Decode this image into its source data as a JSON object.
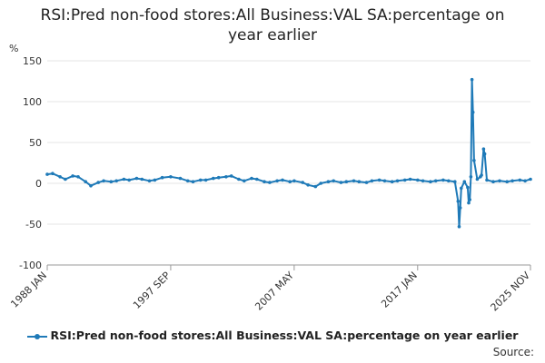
{
  "chart_data": {
    "type": "line",
    "title": "RSI:Pred non-food stores:All Business:VAL SA:percentage on year earlier",
    "title_lines": [
      "RSI:Pred non-food stores:All Business:VAL SA:percentage on",
      "year earlier"
    ],
    "ylabel": "%",
    "ylim": [
      -100,
      150
    ],
    "yticks": [
      150,
      100,
      50,
      0,
      -50,
      -100
    ],
    "xrange": [
      "1988 JAN",
      "2025 NOV"
    ],
    "xticks": [
      "1988 JAN",
      "1997 SEP",
      "2007 MAY",
      "2017 JAN",
      "2025 NOV"
    ],
    "grid": true,
    "legend": "bottom",
    "series": [
      {
        "name": "RSI:Pred non-food stores:All Business:VAL SA:percentage on year earlier",
        "color": "#1f7ab8",
        "points": [
          [
            "1988-01",
            11
          ],
          [
            "1988-06",
            12
          ],
          [
            "1989-01",
            8
          ],
          [
            "1989-06",
            5
          ],
          [
            "1990-01",
            9
          ],
          [
            "1990-06",
            8
          ],
          [
            "1991-01",
            2
          ],
          [
            "1991-06",
            -3
          ],
          [
            "1992-01",
            1
          ],
          [
            "1992-06",
            3
          ],
          [
            "1993-01",
            2
          ],
          [
            "1993-06",
            3
          ],
          [
            "1994-01",
            5
          ],
          [
            "1994-06",
            4
          ],
          [
            "1995-01",
            6
          ],
          [
            "1995-06",
            5
          ],
          [
            "1996-01",
            3
          ],
          [
            "1996-06",
            4
          ],
          [
            "1997-01",
            7
          ],
          [
            "1997-09",
            8
          ],
          [
            "1998-06",
            6
          ],
          [
            "1999-01",
            3
          ],
          [
            "1999-06",
            2
          ],
          [
            "2000-01",
            4
          ],
          [
            "2000-06",
            4
          ],
          [
            "2001-01",
            6
          ],
          [
            "2001-06",
            7
          ],
          [
            "2002-01",
            8
          ],
          [
            "2002-06",
            9
          ],
          [
            "2003-01",
            5
          ],
          [
            "2003-06",
            3
          ],
          [
            "2004-01",
            6
          ],
          [
            "2004-06",
            5
          ],
          [
            "2005-01",
            2
          ],
          [
            "2005-06",
            1
          ],
          [
            "2006-01",
            3
          ],
          [
            "2006-06",
            4
          ],
          [
            "2007-01",
            2
          ],
          [
            "2007-05",
            3
          ],
          [
            "2008-01",
            1
          ],
          [
            "2008-06",
            -2
          ],
          [
            "2009-01",
            -4
          ],
          [
            "2009-06",
            0
          ],
          [
            "2010-01",
            2
          ],
          [
            "2010-06",
            3
          ],
          [
            "2011-01",
            1
          ],
          [
            "2011-06",
            2
          ],
          [
            "2012-01",
            3
          ],
          [
            "2012-06",
            2
          ],
          [
            "2013-01",
            1
          ],
          [
            "2013-06",
            3
          ],
          [
            "2014-01",
            4
          ],
          [
            "2014-06",
            3
          ],
          [
            "2015-01",
            2
          ],
          [
            "2015-06",
            3
          ],
          [
            "2016-01",
            4
          ],
          [
            "2016-06",
            5
          ],
          [
            "2017-01",
            4
          ],
          [
            "2017-06",
            3
          ],
          [
            "2018-01",
            2
          ],
          [
            "2018-06",
            3
          ],
          [
            "2019-01",
            4
          ],
          [
            "2019-06",
            3
          ],
          [
            "2019-12",
            2
          ],
          [
            "2020-03",
            -22
          ],
          [
            "2020-04",
            -53
          ],
          [
            "2020-05",
            -30
          ],
          [
            "2020-06",
            -6
          ],
          [
            "2020-09",
            2
          ],
          [
            "2020-12",
            -5
          ],
          [
            "2021-01",
            -24
          ],
          [
            "2021-02",
            -20
          ],
          [
            "2021-03",
            8
          ],
          [
            "2021-04",
            127
          ],
          [
            "2021-05",
            87
          ],
          [
            "2021-06",
            28
          ],
          [
            "2021-09",
            5
          ],
          [
            "2021-12",
            8
          ],
          [
            "2022-01",
            10
          ],
          [
            "2022-03",
            42
          ],
          [
            "2022-04",
            36
          ],
          [
            "2022-06",
            4
          ],
          [
            "2022-12",
            2
          ],
          [
            "2023-06",
            3
          ],
          [
            "2024-01",
            2
          ],
          [
            "2024-06",
            3
          ],
          [
            "2025-01",
            4
          ],
          [
            "2025-06",
            3
          ],
          [
            "2025-11",
            5
          ]
        ]
      }
    ]
  },
  "source_label": "Source:"
}
